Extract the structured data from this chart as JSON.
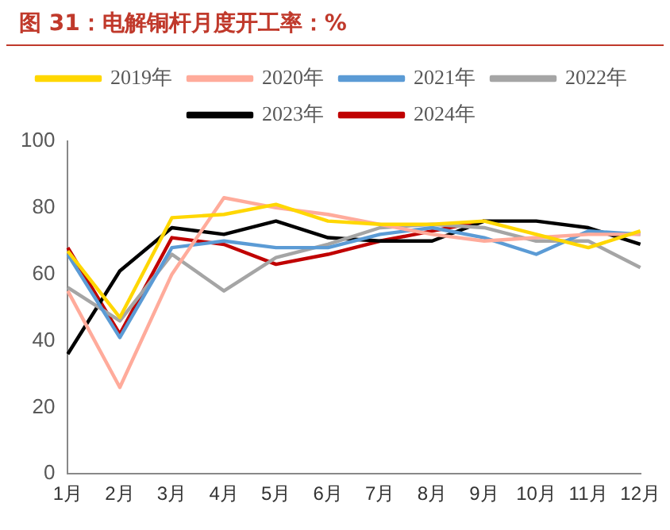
{
  "chart_data": {
    "type": "line",
    "title": "图 31：电解铜杆月度开工率：%",
    "categories": [
      "1月",
      "2月",
      "3月",
      "4月",
      "5月",
      "6月",
      "7月",
      "8月",
      "9月",
      "10月",
      "11月",
      "12月"
    ],
    "series": [
      {
        "name": "2019年",
        "color": "#ffd700",
        "values": [
          67,
          47,
          77,
          78,
          81,
          76,
          75,
          75,
          76,
          72,
          68,
          73
        ]
      },
      {
        "name": "2020年",
        "color": "#ffab9b",
        "values": [
          55,
          26,
          60,
          83,
          80,
          78,
          75,
          72,
          70,
          71,
          72,
          72
        ]
      },
      {
        "name": "2021年",
        "color": "#5b9bd5",
        "values": [
          66,
          41,
          68,
          70,
          68,
          68,
          72,
          74,
          71,
          66,
          73,
          72
        ]
      },
      {
        "name": "2022年",
        "color": "#a5a5a5",
        "values": [
          56,
          46,
          66,
          55,
          65,
          69,
          74,
          75,
          74,
          70,
          70,
          62
        ]
      },
      {
        "name": "2023年",
        "color": "#000000",
        "values": [
          36,
          61,
          74,
          72,
          76,
          71,
          70,
          70,
          76,
          76,
          74,
          69
        ]
      },
      {
        "name": "2024年",
        "color": "#c00000",
        "values": [
          68,
          42,
          71,
          69,
          63,
          66,
          70,
          73,
          76,
          null,
          null,
          null
        ]
      }
    ],
    "ylim": [
      0,
      100
    ],
    "yticks": [
      0,
      20,
      40,
      60,
      80,
      100
    ],
    "grid": false,
    "legend": "top",
    "marker": "none",
    "line_style": "solid"
  }
}
